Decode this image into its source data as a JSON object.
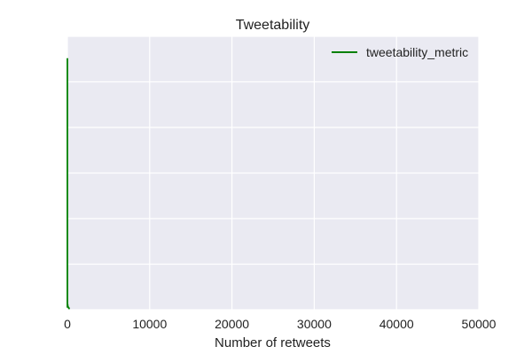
{
  "chart_data": {
    "type": "line",
    "title": "Tweetability",
    "xlabel": "Number of retweets",
    "ylabel": "",
    "xlim": [
      0,
      50000
    ],
    "ylim": [
      0,
      1.0
    ],
    "y_ticks_visible": false,
    "x_ticks": [
      "0",
      "10000",
      "20000",
      "30000",
      "40000",
      "50000"
    ],
    "x_tick_values": [
      0,
      10000,
      20000,
      30000,
      40000,
      50000
    ],
    "grid": true,
    "legend_position": "top-right",
    "series": [
      {
        "name": "tweetability_metric",
        "color": "#008000",
        "x": [
          0,
          1,
          2,
          3,
          5,
          8,
          12,
          20,
          35,
          60,
          100,
          180,
          300
        ],
        "y": [
          0.01,
          0.92,
          0.27,
          0.05,
          0.02,
          0.02,
          0.01,
          0.01,
          0.02,
          0.01,
          0.01,
          0.005,
          0.005
        ]
      }
    ]
  },
  "colors": {
    "plot_background": "#eaeaf2",
    "grid": "#ffffff"
  }
}
